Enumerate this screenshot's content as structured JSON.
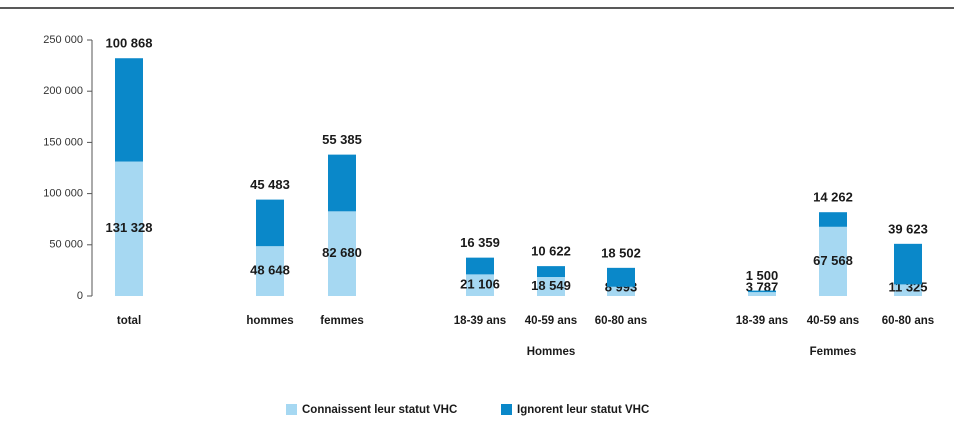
{
  "chart_data": {
    "type": "stacked_bar",
    "categories": [
      "total",
      "hommes",
      "femmes",
      "18-39 ans",
      "40-59 ans",
      "60-80 ans",
      "18-39 ans",
      "40-59 ans",
      "60-80 ans"
    ],
    "group_labels": [
      "Hommes",
      "Femmes"
    ],
    "series": [
      {
        "name": "Connaissent leur statut VHC",
        "color": "#a6d8f2",
        "values": [
          131328,
          48648,
          82680,
          21106,
          18549,
          8993,
          3787,
          67568,
          11325
        ],
        "value_labels": [
          "131 328",
          "48 648",
          "82 680",
          "21 106",
          "18 549",
          "8 993",
          "3 787",
          "67 568",
          "11 325"
        ]
      },
      {
        "name": "Ignorent leur statut VHC",
        "color": "#0a88c9",
        "values": [
          100868,
          45483,
          55385,
          16359,
          10622,
          18502,
          1500,
          14262,
          39623
        ],
        "value_labels": [
          "100 868",
          "45 483",
          "55 385",
          "16 359",
          "10 622",
          "18 502",
          "1 500",
          "14 262",
          "39 623"
        ]
      }
    ],
    "ylim": [
      0,
      250000
    ],
    "yticks": [
      0,
      {
        "value": 50000,
        "label": "50 000"
      },
      {
        "value": 100000,
        "label": "100 000"
      },
      {
        "value": 150000,
        "label": "150 000"
      },
      {
        "value": 200000,
        "label": "200 000"
      },
      {
        "value": 250000,
        "label": "250 000"
      }
    ],
    "legend": "bottom"
  }
}
